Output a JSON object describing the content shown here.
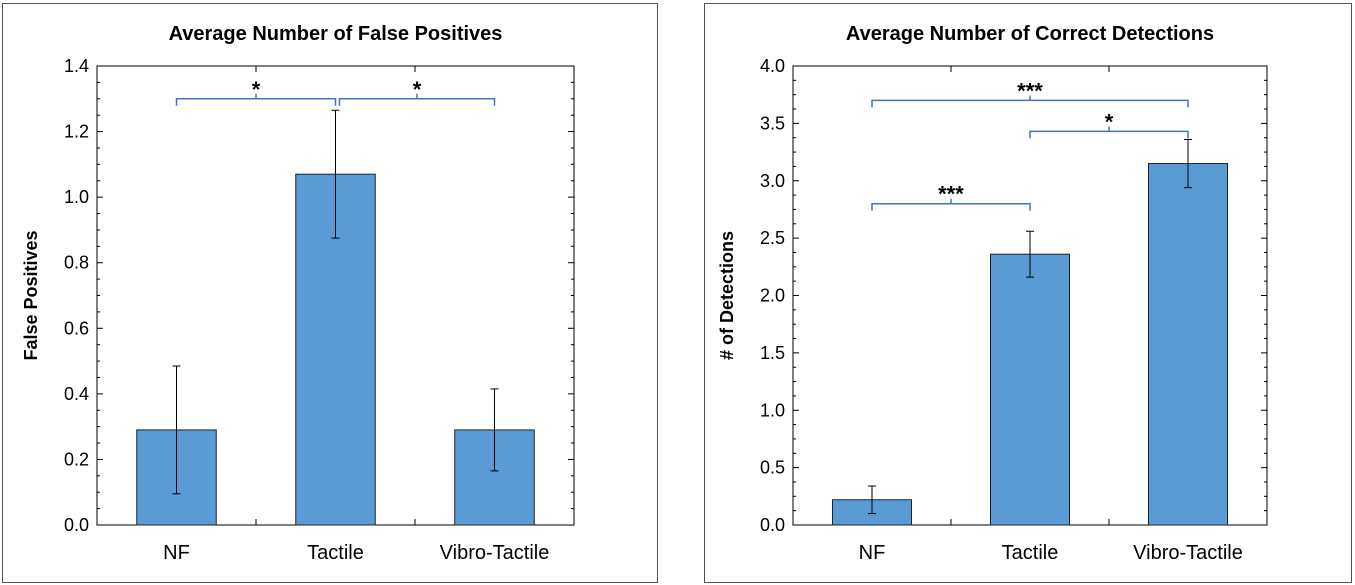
{
  "chart_data": [
    {
      "type": "bar",
      "title": "Average Number of False Positives",
      "xlabel": "",
      "ylabel": "False Positives",
      "categories": [
        "NF",
        "Tactile",
        "Vibro-Tactile"
      ],
      "values": [
        0.29,
        1.07,
        0.29
      ],
      "error": [
        0.195,
        0.195,
        0.125
      ],
      "ylim": [
        0,
        1.4
      ],
      "yticks": [
        0.0,
        0.2,
        0.4,
        0.6,
        0.8,
        1.0,
        1.2,
        1.4
      ],
      "ytick_labels": [
        "0.0",
        "0.2",
        "0.4",
        "0.6",
        "0.8",
        "1.0",
        "1.2",
        "1.4"
      ],
      "grid": false,
      "bar_color": "#5B9BD5",
      "bracket_color": "#4472C4",
      "significance": [
        {
          "from": 0,
          "to": 1,
          "y": 1.3,
          "label": "*"
        },
        {
          "from": 1,
          "to": 2,
          "y": 1.3,
          "label": "*"
        }
      ]
    },
    {
      "type": "bar",
      "title": "Average Number of Correct Detections",
      "xlabel": "",
      "ylabel": "# of Detections",
      "categories": [
        "NF",
        "Tactile",
        "Vibro-Tactile"
      ],
      "values": [
        0.22,
        2.36,
        3.15
      ],
      "error": [
        0.12,
        0.2,
        0.21
      ],
      "ylim": [
        0,
        4.0
      ],
      "yticks": [
        0.0,
        0.5,
        1.0,
        1.5,
        2.0,
        2.5,
        3.0,
        3.5,
        4.0
      ],
      "ytick_labels": [
        "0.0",
        "0.5",
        "1.0",
        "1.5",
        "2.0",
        "2.5",
        "3.0",
        "3.5",
        "4.0"
      ],
      "grid": false,
      "bar_color": "#5B9BD5",
      "bracket_color": "#4472C4",
      "significance": [
        {
          "from": 0,
          "to": 2,
          "y": 3.7,
          "label": "***"
        },
        {
          "from": 1,
          "to": 2,
          "y": 3.43,
          "label": "*"
        },
        {
          "from": 0,
          "to": 1,
          "y": 2.8,
          "label": "***"
        }
      ]
    }
  ]
}
